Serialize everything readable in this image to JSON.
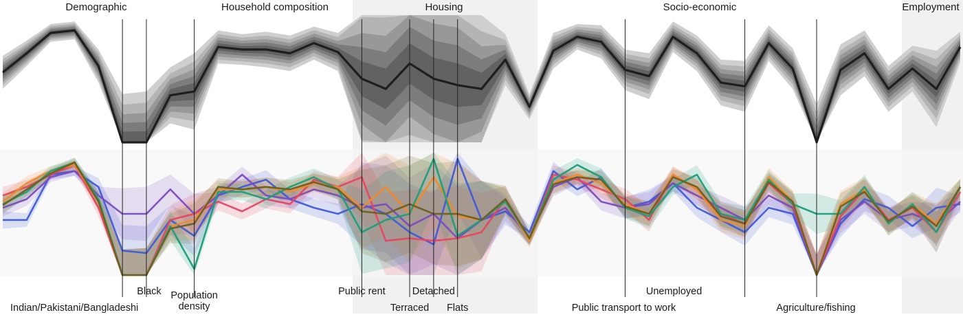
{
  "chart_data": {
    "type": "line",
    "group_labels": [
      {
        "label": "Demographic",
        "shaded": false
      },
      {
        "label": "Household composition",
        "shaded": false
      },
      {
        "label": "Housing",
        "shaded": true
      },
      {
        "label": "Socio-economic",
        "shaded": false
      },
      {
        "label": "Employment",
        "shaded": true
      }
    ],
    "variable_labels": [
      {
        "label": "Indian/Pakistani/Bangladeshi",
        "index": 5
      },
      {
        "label": "Black",
        "index": 6
      },
      {
        "label": "Population density",
        "index": 8
      },
      {
        "label": "Public rent",
        "index": 15
      },
      {
        "label": "Terraced",
        "index": 17
      },
      {
        "label": "Detached",
        "index": 18
      },
      {
        "label": "Flats",
        "index": 19
      },
      {
        "label": "Public transport to work",
        "index": 26
      },
      {
        "label": "Unemployed",
        "index": 31
      },
      {
        "label": "Agriculture/fishing",
        "index": 34
      }
    ],
    "n_variables": 41,
    "y_range": [
      0,
      1
    ],
    "overall_profile": {
      "median": [
        0.55,
        0.7,
        0.86,
        0.88,
        0.6,
        0.0,
        0.0,
        0.37,
        0.4,
        0.75,
        0.73,
        0.73,
        0.7,
        0.78,
        0.71,
        0.5,
        0.42,
        0.62,
        0.5,
        0.45,
        0.42,
        0.65,
        0.28,
        0.72,
        0.83,
        0.79,
        0.57,
        0.52,
        0.83,
        0.7,
        0.47,
        0.44,
        0.78,
        0.58,
        0.0,
        0.57,
        0.7,
        0.42,
        0.58,
        0.42,
        0.75
      ],
      "halfwidth": [
        0.13,
        0.1,
        0.07,
        0.07,
        0.13,
        0.38,
        0.4,
        0.22,
        0.3,
        0.13,
        0.12,
        0.14,
        0.14,
        0.13,
        0.15,
        0.62,
        0.72,
        0.72,
        0.75,
        0.78,
        0.58,
        0.2,
        0.1,
        0.14,
        0.1,
        0.13,
        0.16,
        0.18,
        0.12,
        0.14,
        0.18,
        0.2,
        0.14,
        0.16,
        0.3,
        0.2,
        0.18,
        0.18,
        0.18,
        0.3,
        0.12
      ]
    },
    "cluster_series": [
      {
        "color": "#3f5bd8",
        "values": [
          0.45,
          0.45,
          0.82,
          0.85,
          0.72,
          0.2,
          0.18,
          0.45,
          0.32,
          0.65,
          0.72,
          0.78,
          0.62,
          0.55,
          0.5,
          0.58,
          0.5,
          0.35,
          0.25,
          0.95,
          0.45,
          0.52,
          0.35,
          0.85,
          0.7,
          0.8,
          0.55,
          0.6,
          0.75,
          0.55,
          0.45,
          0.35,
          0.55,
          0.5,
          0.0,
          0.42,
          0.62,
          0.55,
          0.4,
          0.55,
          0.58
        ]
      },
      {
        "color": "#7a4bc0",
        "values": [
          0.55,
          0.62,
          0.8,
          0.85,
          0.65,
          0.5,
          0.5,
          0.7,
          0.5,
          0.65,
          0.82,
          0.65,
          0.62,
          0.7,
          0.65,
          0.55,
          0.58,
          0.4,
          0.5,
          0.3,
          0.45,
          0.55,
          0.3,
          0.72,
          0.8,
          0.6,
          0.55,
          0.58,
          0.75,
          0.65,
          0.55,
          0.45,
          0.65,
          0.55,
          0.0,
          0.45,
          0.6,
          0.45,
          0.5,
          0.42,
          0.6
        ]
      },
      {
        "color": "#e8455f",
        "values": [
          0.65,
          0.72,
          0.82,
          0.9,
          0.55,
          0.0,
          0.0,
          0.45,
          0.5,
          0.6,
          0.52,
          0.62,
          0.58,
          0.78,
          0.72,
          0.8,
          0.28,
          0.3,
          0.28,
          0.3,
          0.35,
          0.62,
          0.3,
          0.82,
          0.78,
          0.7,
          0.62,
          0.45,
          0.82,
          0.7,
          0.5,
          0.42,
          0.75,
          0.58,
          0.0,
          0.48,
          0.7,
          0.45,
          0.55,
          0.35,
          0.68
        ]
      },
      {
        "color": "#f08a2a",
        "values": [
          0.6,
          0.75,
          0.85,
          0.9,
          0.6,
          0.0,
          0.0,
          0.4,
          0.45,
          0.7,
          0.7,
          0.72,
          0.68,
          0.75,
          0.72,
          0.55,
          0.72,
          0.5,
          0.8,
          0.48,
          0.45,
          0.6,
          0.28,
          0.75,
          0.82,
          0.75,
          0.58,
          0.5,
          0.82,
          0.7,
          0.45,
          0.4,
          0.8,
          0.6,
          0.0,
          0.58,
          0.7,
          0.42,
          0.58,
          0.42,
          0.72
        ]
      },
      {
        "color": "#1a9e7a",
        "values": [
          0.58,
          0.68,
          0.85,
          0.92,
          0.62,
          0.0,
          0.0,
          0.4,
          0.05,
          0.68,
          0.68,
          0.62,
          0.72,
          0.8,
          0.7,
          0.35,
          0.45,
          0.5,
          0.95,
          0.32,
          0.45,
          0.6,
          0.3,
          0.78,
          0.9,
          0.8,
          0.55,
          0.48,
          0.72,
          0.82,
          0.5,
          0.45,
          0.78,
          0.58,
          0.5,
          0.5,
          0.72,
          0.42,
          0.58,
          0.35,
          0.72
        ]
      },
      {
        "color": "#6b6020",
        "values": [
          0.57,
          0.7,
          0.83,
          0.92,
          0.6,
          0.0,
          0.0,
          0.38,
          0.42,
          0.72,
          0.7,
          0.72,
          0.7,
          0.76,
          0.7,
          0.52,
          0.5,
          0.58,
          0.5,
          0.5,
          0.45,
          0.62,
          0.3,
          0.74,
          0.8,
          0.78,
          0.56,
          0.5,
          0.8,
          0.72,
          0.48,
          0.42,
          0.76,
          0.6,
          0.0,
          0.56,
          0.68,
          0.44,
          0.56,
          0.4,
          0.72
        ]
      }
    ]
  }
}
